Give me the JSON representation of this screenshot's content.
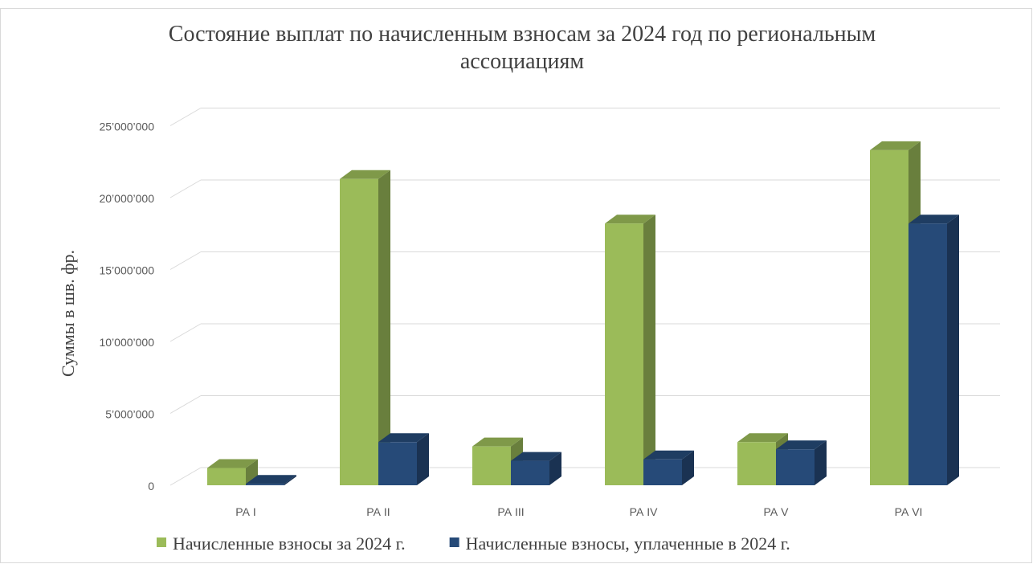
{
  "chart_data": {
    "type": "bar3d",
    "title": "Состояние выплат по начисленным взносам за 2024 год по региональным ассоциациям",
    "ylabel": "Суммы в шв. фр.",
    "categories": [
      "РА I",
      "РА II",
      "РА III",
      "РА IV",
      "РА V",
      "РА VI"
    ],
    "series": [
      {
        "name": "Начисленные взносы за 2024 г.",
        "color": "#9bbb59",
        "values": [
          1200000,
          21300000,
          2700000,
          18200000,
          3000000,
          23300000
        ]
      },
      {
        "name": "Начисленные взносы, уплаченные в 2024 г.",
        "color": "#264a78",
        "values": [
          100000,
          3000000,
          1700000,
          1800000,
          2500000,
          18200000
        ]
      }
    ],
    "ylim": [
      0,
      25000000
    ],
    "yticks": [
      0,
      {
        "value": 5000000,
        "label": "5’000’000"
      },
      {
        "value": 10000000,
        "label": "10’000’000"
      },
      {
        "value": 15000000,
        "label": "15’000’000"
      },
      {
        "value": 20000000,
        "label": "20’000’000"
      },
      {
        "value": 25000000,
        "label": "25’000’000"
      }
    ],
    "grid": true,
    "legend": "bottom"
  }
}
